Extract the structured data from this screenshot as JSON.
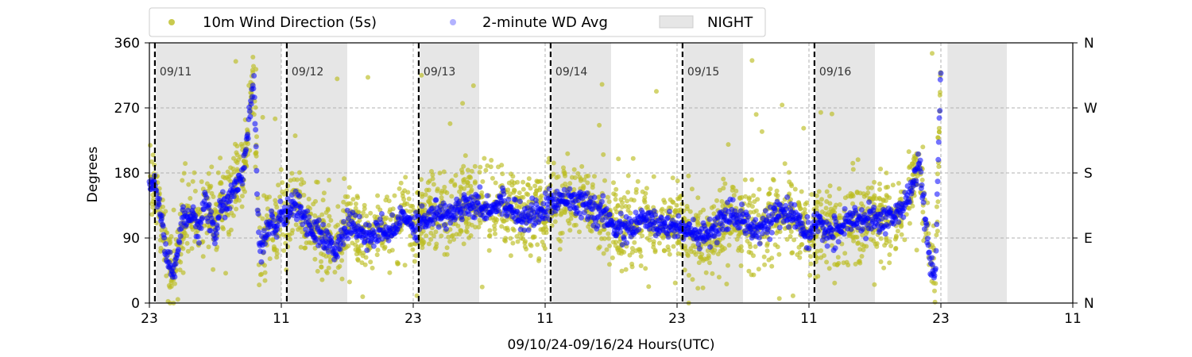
{
  "chart_data": {
    "type": "scatter",
    "xlabel": "09/10/24-09/16/24  Hours(UTC)",
    "ylabel": "Degrees",
    "x_unit": "hours since 09/10 23:00 UTC",
    "xlim": [
      0,
      84
    ],
    "ylim": [
      0,
      360
    ],
    "x_ticks": [
      {
        "value": 0,
        "label": "23"
      },
      {
        "value": 12,
        "label": "11"
      },
      {
        "value": 24,
        "label": "23"
      },
      {
        "value": 36,
        "label": "11"
      },
      {
        "value": 48,
        "label": "23"
      },
      {
        "value": 60,
        "label": "11"
      },
      {
        "value": 72,
        "label": "23"
      },
      {
        "value": 84,
        "label": "11"
      }
    ],
    "y_ticks": [
      0,
      90,
      180,
      270,
      360
    ],
    "y_ticks_right": [
      {
        "value": 0,
        "label": "N"
      },
      {
        "value": 90,
        "label": "E"
      },
      {
        "value": 180,
        "label": "S"
      },
      {
        "value": 270,
        "label": "W"
      },
      {
        "value": 360,
        "label": "N"
      }
    ],
    "grid": true,
    "legend_position": "top",
    "night_periods": [
      [
        0.6,
        12
      ],
      [
        12.5,
        18
      ],
      [
        24.6,
        30
      ],
      [
        36.6,
        42
      ],
      [
        48.6,
        54
      ],
      [
        60.6,
        66
      ],
      [
        72.6,
        78
      ]
    ],
    "day_markers": [
      {
        "x": 0.5,
        "label": "09/11"
      },
      {
        "x": 12.5,
        "label": "09/12"
      },
      {
        "x": 24.5,
        "label": "09/13"
      },
      {
        "x": 36.5,
        "label": "09/14"
      },
      {
        "x": 48.5,
        "label": "09/15"
      },
      {
        "x": 60.5,
        "label": "09/16"
      }
    ],
    "series": [
      {
        "name": "10m Wind Direction (5s)",
        "color": "#bcbd22",
        "marker": "circle",
        "note": "5-second samples scattered about the 2-minute average with spread of roughly ±60 degrees",
        "spread_deg": 60
      },
      {
        "name": "2-minute WD Avg",
        "color": "#0000ff",
        "marker": "circle",
        "x": [
          0,
          0.5,
          1,
          1.5,
          2,
          2.5,
          3,
          3.5,
          4,
          4.5,
          5,
          5.5,
          6,
          6.5,
          7,
          7.5,
          8,
          8.5,
          9,
          9.5,
          10,
          10.5,
          11,
          11.5,
          12,
          12.5,
          13,
          13.5,
          14,
          14.5,
          15,
          16,
          17,
          18,
          19,
          20,
          21,
          22,
          23,
          24,
          25,
          26,
          27,
          28,
          29,
          30,
          31,
          32,
          33,
          34,
          35,
          36,
          37,
          38,
          39,
          40,
          41,
          42,
          43,
          44,
          45,
          46,
          47,
          48,
          49,
          50,
          51,
          52,
          53,
          54,
          55,
          56,
          57,
          58,
          59,
          60,
          61,
          62,
          63,
          64,
          65,
          66,
          67,
          68,
          69,
          70,
          70.5,
          71,
          71.5,
          72
        ],
        "y": [
          175,
          160,
          130,
          75,
          40,
          60,
          120,
          110,
          130,
          100,
          140,
          120,
          90,
          140,
          130,
          150,
          170,
          175,
          250,
          310,
          70,
          90,
          120,
          100,
          130,
          115,
          140,
          130,
          120,
          110,
          100,
          90,
          70,
          110,
          100,
          90,
          100,
          95,
          120,
          110,
          115,
          125,
          120,
          130,
          140,
          135,
          130,
          140,
          130,
          120,
          125,
          130,
          140,
          150,
          140,
          130,
          125,
          110,
          100,
          105,
          115,
          110,
          105,
          110,
          100,
          90,
          95,
          110,
          120,
          115,
          105,
          110,
          120,
          125,
          115,
          90,
          110,
          95,
          105,
          115,
          110,
          120,
          115,
          125,
          140,
          200,
          120,
          60,
          40,
          330
        ]
      }
    ]
  }
}
